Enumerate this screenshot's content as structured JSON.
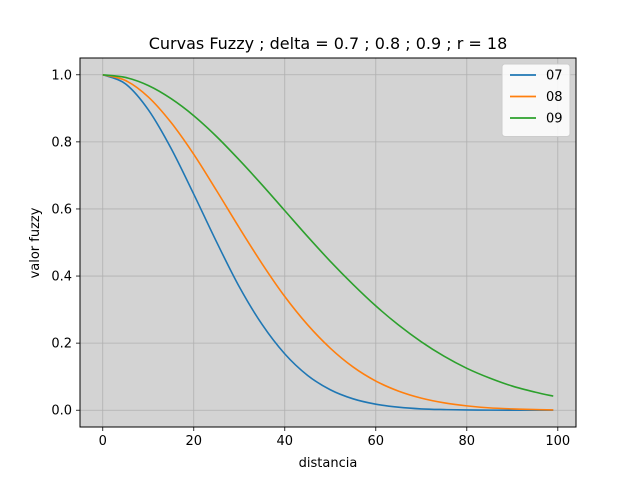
{
  "chart_data": {
    "type": "line",
    "title": "Curvas Fuzzy ; delta = 0.7 ; 0.8 ; 0.9 ; r = 18",
    "xlabel": "distancia",
    "ylabel": "valor fuzzy",
    "xlim": [
      -5,
      104
    ],
    "ylim": [
      -0.05,
      1.05
    ],
    "xticks": [
      0,
      20,
      40,
      60,
      80,
      100
    ],
    "yticks": [
      0.0,
      0.2,
      0.4,
      0.6,
      0.8,
      1.0
    ],
    "xtick_labels": [
      "0",
      "20",
      "40",
      "60",
      "80",
      "100"
    ],
    "ytick_labels": [
      "0.0",
      "0.2",
      "0.4",
      "0.6",
      "0.8",
      "1.0"
    ],
    "grid": true,
    "legend": "top-right",
    "background": "#d3d3d3",
    "x": [
      0,
      5,
      10,
      15,
      20,
      25,
      30,
      35,
      40,
      45,
      50,
      55,
      60,
      65,
      70,
      75,
      80,
      85,
      90,
      95,
      99
    ],
    "series": [
      {
        "name": "07",
        "color": "#1f77b4",
        "values": [
          1.0,
          0.973,
          0.896,
          0.781,
          0.644,
          0.502,
          0.368,
          0.256,
          0.168,
          0.104,
          0.061,
          0.034,
          0.018,
          0.009,
          0.004,
          0.002,
          0.001,
          0.0003,
          0.0001,
          5e-05,
          2e-05
        ]
      },
      {
        "name": "08",
        "color": "#ff7f0e",
        "values": [
          1.0,
          0.983,
          0.934,
          0.858,
          0.763,
          0.655,
          0.544,
          0.437,
          0.339,
          0.255,
          0.185,
          0.129,
          0.087,
          0.057,
          0.036,
          0.022,
          0.013,
          0.007,
          0.004,
          0.002,
          0.001
        ]
      },
      {
        "name": "09",
        "color": "#2ca02c",
        "values": [
          1.0,
          0.992,
          0.968,
          0.929,
          0.878,
          0.816,
          0.746,
          0.672,
          0.595,
          0.518,
          0.444,
          0.375,
          0.311,
          0.254,
          0.204,
          0.161,
          0.125,
          0.096,
          0.072,
          0.054,
          0.042
        ]
      }
    ]
  }
}
